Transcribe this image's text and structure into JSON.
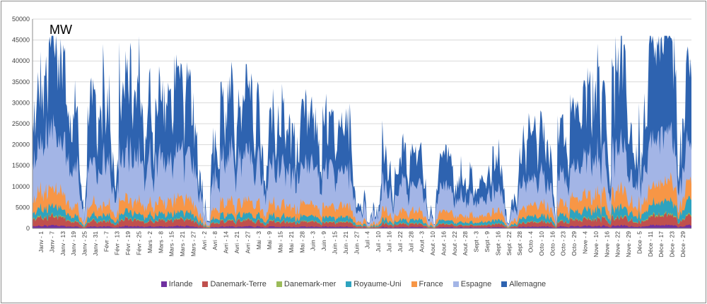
{
  "chart_data": {
    "type": "area",
    "stacked": true,
    "unit_label": "MW",
    "title": "",
    "xlabel": "",
    "ylabel": "",
    "ylim": [
      0,
      50000
    ],
    "y_ticks": [
      0,
      5000,
      10000,
      15000,
      20000,
      25000,
      30000,
      35000,
      40000,
      45000,
      50000
    ],
    "grid": "horizontal",
    "legend_position": "bottom",
    "x_tick_labels": [
      "Janv - 1",
      "Janv - 7",
      "Janv - 13",
      "Janv - 19",
      "Janv - 25",
      "Janv - 31",
      "Févr - 7",
      "Févr - 13",
      "Févr - 19",
      "Févr - 25",
      "Mars - 2",
      "Mars - 8",
      "Mars - 15",
      "Mars - 21",
      "Mars - 27",
      "Avri - 2",
      "Avri - 8",
      "Avri - 14",
      "Avri - 21",
      "Avri - 27",
      "Mai - 3",
      "Mai - 9",
      "Mai - 15",
      "Mai - 21",
      "Mai - 28",
      "Juin - 3",
      "Juin - 9",
      "Juin - 15",
      "Juin - 21",
      "Juin - 27",
      "Juil - 4",
      "Juil - 10",
      "Juil - 16",
      "Juil - 22",
      "Juil - 28",
      "Aout - 3",
      "Aout - 10",
      "Aout - 16",
      "Aout - 22",
      "Aout - 28",
      "Sept - 3",
      "Sept - 9",
      "Sept - 16",
      "Sept - 22",
      "Sept - 28",
      "Octo - 4",
      "Octo - 10",
      "Octo - 16",
      "Octo - 23",
      "Octo - 29",
      "Nove - 4",
      "Nove - 10",
      "Nove - 16",
      "Nove - 22",
      "Nove - 29",
      "Déce - 5",
      "Déce - 11",
      "Déce - 17",
      "Déce - 23",
      "Déce - 29"
    ],
    "series": [
      {
        "name": "Irlande",
        "color": "#7030a0"
      },
      {
        "name": "Danemark-Terre",
        "color": "#c0504d"
      },
      {
        "name": "Danemark-mer",
        "color": "#9bbb59"
      },
      {
        "name": "Royaume-Uni",
        "color": "#2ea3bf"
      },
      {
        "name": "France",
        "color": "#f79646"
      },
      {
        "name": "Espagne",
        "color": "#a3b5e6"
      },
      {
        "name": "Allemagne",
        "color": "#2e63b0"
      }
    ],
    "weekly_peaks": [
      {
        "week": 1,
        "Irlande": 800,
        "Danemark-Terre": 2500,
        "Danemark-mer": 300,
        "Royaume-Uni": 2500,
        "France": 5000,
        "Espagne": 15000,
        "Allemagne": 17000
      },
      {
        "week": 4,
        "Irlande": 500,
        "Danemark-Terre": 1500,
        "Danemark-mer": 200,
        "Royaume-Uni": 1500,
        "France": 3000,
        "Espagne": 12000,
        "Allemagne": 17000
      },
      {
        "week": 7,
        "Irlande": 600,
        "Danemark-Terre": 1800,
        "Danemark-mer": 200,
        "Royaume-Uni": 1800,
        "France": 3500,
        "Espagne": 12000,
        "Allemagne": 18000
      },
      {
        "week": 16,
        "Irlande": 500,
        "Danemark-Terre": 1500,
        "Danemark-mer": 200,
        "Royaume-Uni": 1500,
        "France": 3500,
        "Espagne": 12000,
        "Allemagne": 13000
      },
      {
        "week": 35,
        "Irlande": 300,
        "Danemark-Terre": 600,
        "Danemark-mer": 100,
        "Royaume-Uni": 800,
        "France": 2000,
        "Espagne": 5000,
        "Allemagne": 5000
      },
      {
        "week": 50,
        "Irlande": 800,
        "Danemark-Terre": 2500,
        "Danemark-mer": 300,
        "Royaume-Uni": 3000,
        "France": 5000,
        "Espagne": 12000,
        "Allemagne": 21000
      },
      {
        "week": 52,
        "Irlande": 800,
        "Danemark-Terre": 2500,
        "Danemark-mer": 300,
        "Royaume-Uni": 4000,
        "France": 5000,
        "Espagne": 10000,
        "Allemagne": 17000
      }
    ]
  }
}
